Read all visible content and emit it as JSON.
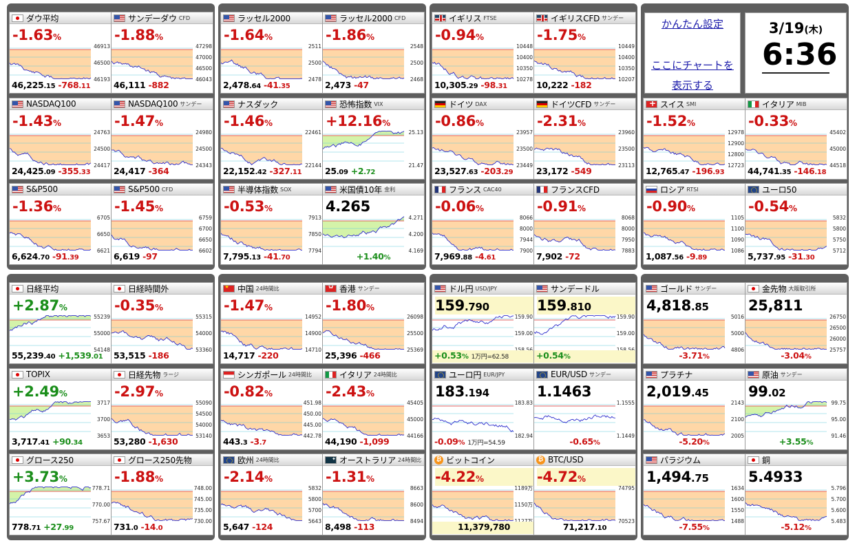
{
  "settings": {
    "simple_settings": "かんたん設定",
    "place_chart_line1": "ここにチャートを",
    "place_chart_line2": "表示する"
  },
  "clock": {
    "date": "3/19",
    "weekday": "(木)",
    "time": "6:36"
  },
  "colors": {
    "up": "#1b8e1b",
    "down": "#cc1111",
    "panel": "#5e5e5e",
    "line": "#2a2acc"
  },
  "cells": [
    {
      "flag": "jp",
      "name": "ダウ平均",
      "sub": "",
      "pct": "-1.63",
      "dir": "dn",
      "val_main": "46,225",
      "val_small": ".15",
      "chg": "-768",
      "chg_small": ".11",
      "labels": [
        "46913",
        "46500",
        "46193"
      ]
    },
    {
      "flag": "us",
      "name": "サンデーダウ",
      "sub": "CFD",
      "pct": "-1.88",
      "dir": "dn",
      "val_main": "46,111",
      "val_small": "",
      "chg": "-882",
      "chg_small": "",
      "labels": [
        "47298",
        "47000",
        "46500",
        "46043"
      ]
    },
    {
      "flag": "us",
      "name": "ラッセル2000",
      "sub": "",
      "pct": "-1.64",
      "dir": "dn",
      "val_main": "2,478",
      "val_small": ".64",
      "chg": "-41",
      "chg_small": ".35",
      "labels": [
        "2511",
        "2500",
        "2478"
      ]
    },
    {
      "flag": "us",
      "name": "ラッセル2000",
      "sub": "CFD",
      "pct": "-1.86",
      "dir": "dn",
      "val_main": "2,473",
      "val_small": "",
      "chg": "-47",
      "chg_small": "",
      "labels": [
        "2548",
        "2500",
        "2468"
      ]
    },
    {
      "flag": "gb",
      "name": "イギリス",
      "sub": "FTSE",
      "pct": "-0.94",
      "dir": "dn",
      "val_main": "10,305",
      "val_small": ".29",
      "chg": "-98",
      "chg_small": ".31",
      "labels": [
        "10448",
        "10400",
        "10350",
        "10278"
      ]
    },
    {
      "flag": "gb",
      "name": "イギリスCFD",
      "sub": "サンデー",
      "pct": "-1.75",
      "dir": "dn",
      "val_main": "10,222",
      "val_small": "",
      "chg": "-182",
      "chg_small": "",
      "labels": [
        "10449",
        "10400",
        "10350",
        "10207"
      ]
    },
    {
      "flag": "us",
      "name": "NASDAQ100",
      "sub": "",
      "pct": "-1.43",
      "dir": "dn",
      "val_main": "24,425",
      "val_small": ".09",
      "chg": "-355",
      "chg_small": ".33",
      "labels": [
        "24763",
        "24500",
        "24417"
      ]
    },
    {
      "flag": "us",
      "name": "NASDAQ100",
      "sub": "サンデー",
      "pct": "-1.47",
      "dir": "dn",
      "val_main": "24,417",
      "val_small": "",
      "chg": "-364",
      "chg_small": "",
      "labels": [
        "24980",
        "24500",
        "24343"
      ]
    },
    {
      "flag": "us",
      "name": "ナスダック",
      "sub": "",
      "pct": "-1.46",
      "dir": "dn",
      "val_main": "22,152",
      "val_small": ".42",
      "chg": "-327",
      "chg_small": ".11",
      "labels": [
        "22461",
        "22144"
      ]
    },
    {
      "flag": "us",
      "name": "恐怖指数",
      "sub": "VIX",
      "pct": "+12.16",
      "dir": "up_red",
      "val_main": "25",
      "val_small": ".09",
      "chg": "+2",
      "chg_small": ".72",
      "labels": [
        "25.13",
        "21.47"
      ]
    },
    {
      "flag": "de",
      "name": "ドイツ",
      "sub": "DAX",
      "pct": "-0.86",
      "dir": "dn",
      "val_main": "23,527",
      "val_small": ".63",
      "chg": "-203",
      "chg_small": ".29",
      "labels": [
        "23957",
        "23500",
        "23449"
      ]
    },
    {
      "flag": "de",
      "name": "ドイツCFD",
      "sub": "サンデー",
      "pct": "-2.31",
      "dir": "dn",
      "val_main": "23,172",
      "val_small": "",
      "chg": "-549",
      "chg_small": "",
      "labels": [
        "23960",
        "23500",
        "23113"
      ]
    },
    {
      "flag": "us",
      "name": "S&P500",
      "sub": "",
      "pct": "-1.36",
      "dir": "dn",
      "val_main": "6,624",
      "val_small": ".70",
      "chg": "-91",
      "chg_small": ".39",
      "labels": [
        "6705",
        "6650",
        "6621"
      ]
    },
    {
      "flag": "us",
      "name": "S&P500",
      "sub": "CFD",
      "pct": "-1.45",
      "dir": "dn",
      "val_main": "6,619",
      "val_small": "",
      "chg": "-97",
      "chg_small": "",
      "labels": [
        "6759",
        "6700",
        "6650",
        "6602"
      ]
    },
    {
      "flag": "us",
      "name": "半導体指数",
      "sub": "SOX",
      "pct": "-0.53",
      "dir": "dn",
      "val_main": "7,795",
      "val_small": ".13",
      "chg": "-41",
      "chg_small": ".70",
      "labels": [
        "7913",
        "7850",
        "7794"
      ]
    },
    {
      "flag": "us",
      "name": "米国債10年",
      "sub": "金利",
      "pct": "",
      "dir": "bond",
      "val_main": "4.265",
      "val_small": "",
      "chg": "+1.40",
      "chg_small": "%",
      "labels": [
        "4.271",
        "4.200",
        "4.169"
      ]
    },
    {
      "flag": "fr",
      "name": "フランス",
      "sub": "CAC40",
      "pct": "-0.06",
      "dir": "dn",
      "val_main": "7,969",
      "val_small": ".88",
      "chg": "-4",
      "chg_small": ".61",
      "labels": [
        "8066",
        "8000",
        "7944",
        "7900"
      ]
    },
    {
      "flag": "fr",
      "name": "フランスCFD",
      "sub": "",
      "pct": "-0.91",
      "dir": "dn",
      "val_main": "7,902",
      "val_small": "",
      "chg": "-72",
      "chg_small": "",
      "labels": [
        "8068",
        "8000",
        "7950",
        "7883"
      ]
    },
    {
      "flag": "ch",
      "name": "スイス",
      "sub": "SMI",
      "pct": "-1.52",
      "dir": "dn",
      "val_main": "12,765",
      "val_small": ".47",
      "chg": "-196",
      "chg_small": ".93",
      "labels": [
        "12978",
        "12900",
        "12800",
        "12723"
      ]
    },
    {
      "flag": "it",
      "name": "イタリア",
      "sub": "MIB",
      "pct": "-0.33",
      "dir": "dn",
      "val_main": "44,741",
      "val_small": ".35",
      "chg": "-146",
      "chg_small": ".18",
      "labels": [
        "45402",
        "45000",
        "44518"
      ]
    },
    {
      "flag": "ru",
      "name": "ロシア",
      "sub": "RTSI",
      "pct": "-0.90",
      "dir": "dn",
      "val_main": "1,087",
      "val_small": ".56",
      "chg": "-9",
      "chg_small": ".89",
      "labels": [
        "1105",
        "1100",
        "1090",
        "1086"
      ]
    },
    {
      "flag": "eu",
      "name": "ユーロ50",
      "sub": "",
      "pct": "-0.54",
      "dir": "dn",
      "val_main": "5,737",
      "val_small": ".95",
      "chg": "-31",
      "chg_small": ".30",
      "labels": [
        "5832",
        "5800",
        "5750",
        "5712"
      ]
    },
    {
      "flag": "jp",
      "name": "日経平均",
      "sub": "",
      "pct": "+2.87",
      "dir": "up",
      "val_main": "55,239",
      "val_small": ".40",
      "chg": "+1,539",
      "chg_small": ".01",
      "labels": [
        "55239",
        "55000",
        "54148"
      ]
    },
    {
      "flag": "jp",
      "name": "日経時間外",
      "sub": "",
      "pct": "-0.35",
      "dir": "dn",
      "val_main": "53,515",
      "val_small": "",
      "chg": "-186",
      "chg_small": "",
      "labels": [
        "55315",
        "54000",
        "53360"
      ]
    },
    {
      "flag": "cn",
      "name": "中国",
      "sub": "24時間比",
      "pct": "-1.47",
      "dir": "dn",
      "val_main": "14,717",
      "val_small": "",
      "chg": "-220",
      "chg_small": "",
      "labels": [
        "14952",
        "14900",
        "14710"
      ]
    },
    {
      "flag": "hk",
      "name": "香港",
      "sub": "サンデー",
      "pct": "-1.80",
      "dir": "dn",
      "val_main": "25,396",
      "val_small": "",
      "chg": "-466",
      "chg_small": "",
      "labels": [
        "26098",
        "25500",
        "25369"
      ]
    },
    {
      "flag": "us",
      "name": "ドル円",
      "sub": "USD/JPY",
      "pct": "",
      "dir": "fx",
      "val_main": "159",
      "val_small": ".790",
      "chg": "+0.53",
      "chg_small": "%",
      "note": "1万円=62.58",
      "labels": [
        "159.90",
        "159.00",
        "158.56"
      ]
    },
    {
      "flag": "us",
      "name": "サンデードル",
      "sub": "",
      "pct": "",
      "dir": "fx",
      "val_main": "159",
      "val_small": ".810",
      "chg": "+0.54",
      "chg_small": "%",
      "note": "",
      "labels": [
        "159.90",
        "159.00",
        "158.56"
      ]
    },
    {
      "flag": "us",
      "name": "ゴールド",
      "sub": "サンデー",
      "pct": "",
      "dir": "cmd",
      "val_main": "4,818",
      "val_small": ".85",
      "chg": "-3.71",
      "chg_small": "%",
      "labels": [
        "5016",
        "5000",
        "4806"
      ]
    },
    {
      "flag": "jp",
      "name": "金先物",
      "sub": "大阪取引所",
      "pct": "",
      "dir": "cmd",
      "val_main": "25,811",
      "val_small": "",
      "chg": "-3.04",
      "chg_small": "%",
      "labels": [
        "26750",
        "26500",
        "26000",
        "25757"
      ]
    },
    {
      "flag": "jp",
      "name": "TOPIX",
      "sub": "",
      "pct": "+2.49",
      "dir": "up",
      "val_main": "3,717",
      "val_small": ".41",
      "chg": "+90",
      "chg_small": ".34",
      "labels": [
        "3717",
        "3700",
        "3653"
      ]
    },
    {
      "flag": "jp",
      "name": "日経先物",
      "sub": "ラージ",
      "pct": "-2.97",
      "dir": "dn",
      "val_main": "53,280",
      "val_small": "",
      "chg": "-1,630",
      "chg_small": "",
      "labels": [
        "55090",
        "54500",
        "54000",
        "53140"
      ]
    },
    {
      "flag": "sg",
      "name": "シンガポール",
      "sub": "24時間比",
      "pct": "-0.82",
      "dir": "dn",
      "val_main": "443",
      "val_small": ".3",
      "chg": "-3",
      "chg_small": ".7",
      "labels": [
        "451.98",
        "450.00",
        "445.00",
        "442.78"
      ]
    },
    {
      "flag": "it",
      "name": "イタリア",
      "sub": "24時間比",
      "pct": "-2.43",
      "dir": "dn",
      "val_main": "44,190",
      "val_small": "",
      "chg": "-1,099",
      "chg_small": "",
      "labels": [
        "45405",
        "45000",
        "44166"
      ]
    },
    {
      "flag": "eu",
      "name": "ユーロ円",
      "sub": "EUR/JPY",
      "pct": "",
      "dir": "fx2",
      "val_main": "183",
      "val_small": ".194",
      "chg": "-0.09",
      "chg_small": "%",
      "note": "1万円=54.59",
      "labels": [
        "183.83",
        "182.94"
      ]
    },
    {
      "flag": "eu",
      "name": "EUR/USD",
      "sub": "サンデー",
      "pct": "",
      "dir": "fx2",
      "val_main": "1.1463",
      "val_small": "",
      "chg": "-0.65",
      "chg_small": "%",
      "note": "",
      "labels": [
        "1.1555",
        "1.1449"
      ]
    },
    {
      "flag": "us",
      "name": "プラチナ",
      "sub": "",
      "pct": "",
      "dir": "cmd",
      "val_main": "2,019",
      "val_small": ".45",
      "chg": "-5.20",
      "chg_small": "%",
      "labels": [
        "2143",
        "2100",
        "2005"
      ]
    },
    {
      "flag": "us",
      "name": "原油",
      "sub": "サンデー",
      "pct": "",
      "dir": "cmd_up",
      "val_main": "99",
      "val_small": ".02",
      "chg": "+3.55",
      "chg_small": "%",
      "labels": [
        "99.75",
        "95.00",
        "91.46"
      ]
    },
    {
      "flag": "jp",
      "name": "グロース250",
      "sub": "",
      "pct": "+3.73",
      "dir": "up",
      "val_main": "778",
      "val_small": ".71",
      "chg": "+27",
      "chg_small": ".99",
      "labels": [
        "778.71",
        "770.00",
        "757.67"
      ]
    },
    {
      "flag": "jp",
      "name": "グロース250先物",
      "sub": "",
      "pct": "-1.88",
      "dir": "dn",
      "val_main": "731",
      "val_small": ".0",
      "chg": "-14",
      "chg_small": ".0",
      "labels": [
        "748.00",
        "745.00",
        "735.00",
        "730.00"
      ]
    },
    {
      "flag": "eu",
      "name": "欧州",
      "sub": "24時間比",
      "pct": "-2.14",
      "dir": "dn",
      "val_main": "5,647",
      "val_small": "",
      "chg": "-124",
      "chg_small": "",
      "labels": [
        "5832",
        "5800",
        "5700",
        "5643"
      ]
    },
    {
      "flag": "au",
      "name": "オーストラリア",
      "sub": "24時間比",
      "pct": "-1.31",
      "dir": "dn",
      "val_main": "8,498",
      "val_small": "",
      "chg": "-113",
      "chg_small": "",
      "labels": [
        "8663",
        "8600",
        "8494"
      ]
    },
    {
      "flag": "btc",
      "name": "ビットコイン",
      "sub": "",
      "pct": "-4.22",
      "dir": "btc",
      "val_main": "11,379,780",
      "val_small": "",
      "chg": "",
      "chg_small": "",
      "labels": [
        "1189万",
        "1150万",
        "1127万"
      ]
    },
    {
      "flag": "btc",
      "name": "BTC/USD",
      "sub": "",
      "pct": "-4.72",
      "dir": "btc2",
      "val_main": "71,217",
      "val_small": ".10",
      "chg": "",
      "chg_small": "",
      "labels": [
        "74795",
        "70523"
      ]
    },
    {
      "flag": "us",
      "name": "パラジウム",
      "sub": "",
      "pct": "",
      "dir": "cmd",
      "val_main": "1,494",
      "val_small": ".75",
      "chg": "-7.55",
      "chg_small": "%",
      "labels": [
        "1634",
        "1600",
        "1550",
        "1488"
      ]
    },
    {
      "flag": "jp",
      "name": "銅",
      "sub": "",
      "pct": "",
      "dir": "cmd",
      "val_main": "5.4933",
      "val_small": "",
      "chg": "-5.12",
      "chg_small": "%",
      "labels": [
        "5.796",
        "5.700",
        "5.600",
        "5.483"
      ]
    }
  ]
}
